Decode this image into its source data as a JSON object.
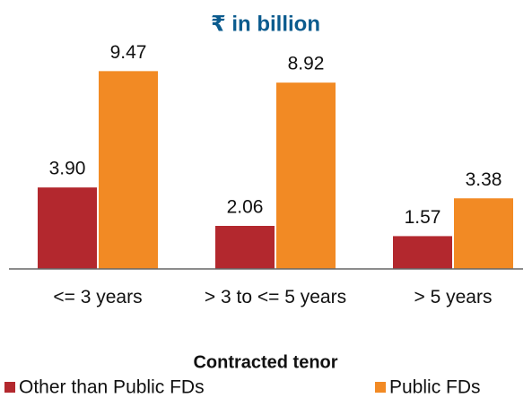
{
  "chart_data": {
    "type": "bar",
    "subtitle": "₹ in billion",
    "x_label": "Contracted tenor",
    "categories": [
      "<= 3 years",
      "> 3 to <= 5 years",
      "> 5 years"
    ],
    "series": [
      {
        "name": "Other than Public FDs",
        "color": "#b3282e",
        "values": [
          3.9,
          2.06,
          1.57
        ],
        "value_labels": [
          "3.90",
          "2.06",
          "1.57"
        ]
      },
      {
        "name": "Public FDs",
        "color": "#f28a24",
        "values": [
          9.47,
          8.92,
          3.38
        ],
        "value_labels": [
          "9.47",
          "8.92",
          "3.38"
        ]
      }
    ],
    "ylim": [
      0,
      10
    ]
  }
}
